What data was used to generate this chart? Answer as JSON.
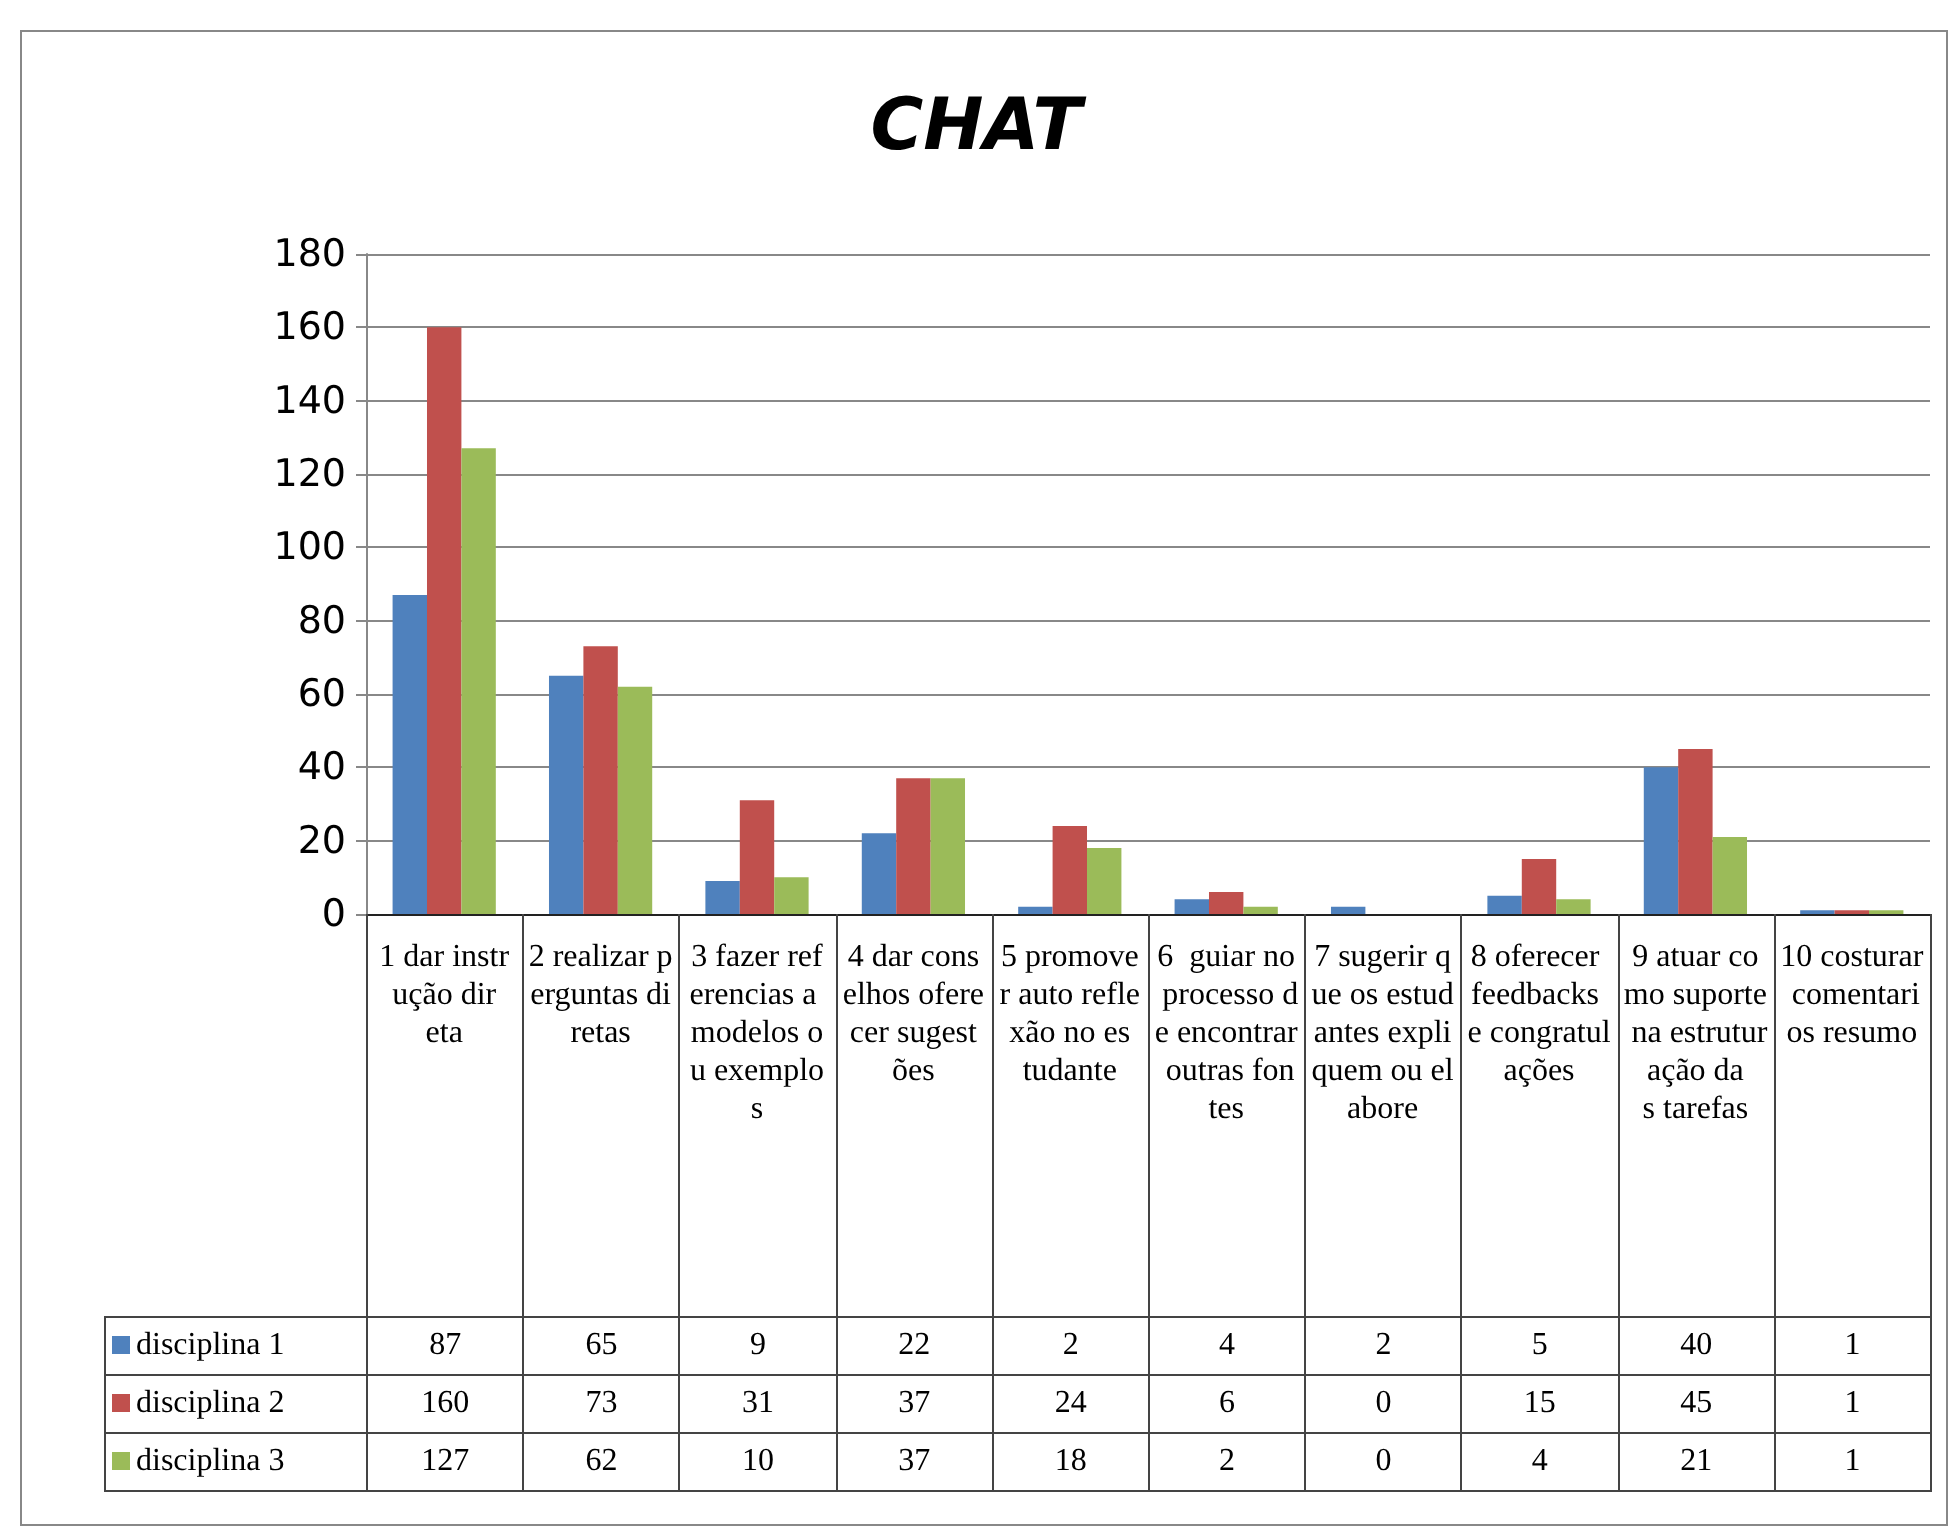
{
  "chart_data": {
    "type": "bar",
    "title": "CHAT",
    "categories": [
      "1 dar instrução direta",
      "2 realizar perguntas diretas",
      "3 fazer referencias a modelos ou exemplos",
      "4 dar conselhos oferecer sugestões",
      "5 promover auto reflexão no estudante",
      "6  guiar no processo de encontrar outras fontes",
      "7 sugerir que os estudantes expliquem ou elabore",
      "8 oferecer feedbacks e congratulações",
      "9 atuar como suporte na estruturação das tarefas",
      "10 costurar comentarios resumo"
    ],
    "series": [
      {
        "name": "disciplina 1",
        "color": "#4f81bd",
        "values": [
          87,
          65,
          9,
          22,
          2,
          4,
          2,
          5,
          40,
          1
        ]
      },
      {
        "name": "disciplina 2",
        "color": "#c0504d",
        "values": [
          160,
          73,
          31,
          37,
          24,
          6,
          0,
          15,
          45,
          1
        ]
      },
      {
        "name": "disciplina 3",
        "color": "#9bbb59",
        "values": [
          127,
          62,
          10,
          37,
          18,
          2,
          0,
          4,
          21,
          1
        ]
      }
    ],
    "ylim": [
      0,
      180
    ],
    "yticks": [
      0,
      20,
      40,
      60,
      80,
      100,
      120,
      140,
      160,
      180
    ],
    "grid": "y",
    "legend": "bottom",
    "data_labels": true
  }
}
